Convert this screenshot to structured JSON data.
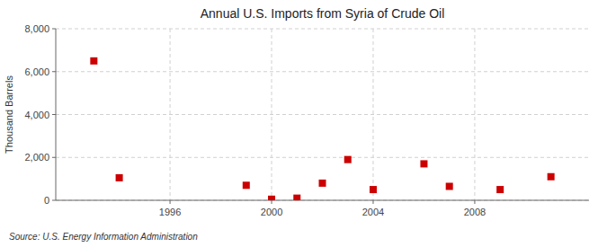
{
  "chart_data": {
    "type": "scatter",
    "title": "Annual U.S. Imports from Syria of Crude Oil",
    "ylabel": "Thousand Barrels",
    "source": "Source: U.S. Energy Information Administration",
    "x": [
      1993,
      1994,
      1999,
      2000,
      2001,
      2002,
      2003,
      2004,
      2006,
      2007,
      2009,
      2011
    ],
    "values": [
      6500,
      1050,
      700,
      50,
      100,
      800,
      1900,
      500,
      1700,
      650,
      500,
      1100
    ],
    "xlim": [
      1991.5,
      2012.5
    ],
    "ylim": [
      0,
      8000
    ],
    "xticks": [
      1996,
      2000,
      2004,
      2008
    ],
    "yticks": [
      0,
      {
        "value": 2000,
        "label": "2,000"
      },
      {
        "value": 4000,
        "label": "4,000"
      },
      {
        "value": 6000,
        "label": "6,000"
      },
      {
        "value": 8000,
        "label": "8,000"
      }
    ],
    "color": "#cc0000",
    "marker": "square",
    "grid": true
  }
}
